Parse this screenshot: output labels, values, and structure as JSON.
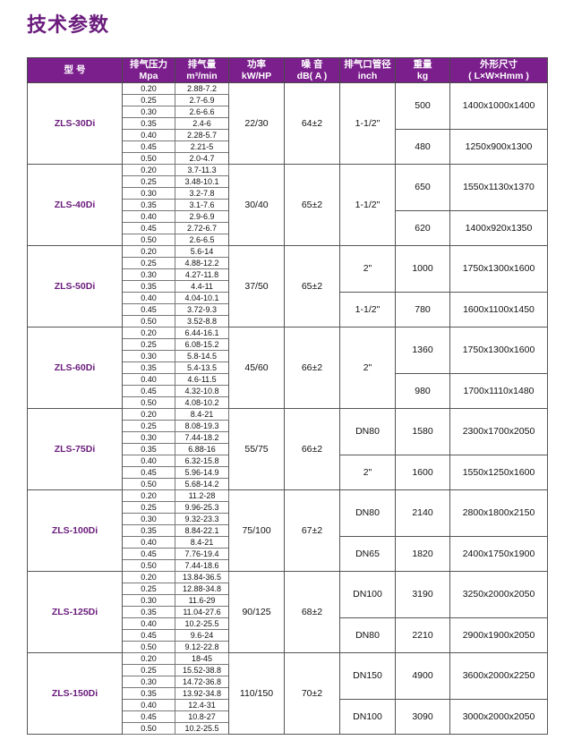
{
  "title": "技术参数",
  "headers": [
    {
      "l1": "型  号",
      "l2": ""
    },
    {
      "l1": "排气压力",
      "l2": "Mpa"
    },
    {
      "l1": "排气量",
      "l2": "m³/min"
    },
    {
      "l1": "功率",
      "l2": "kW/HP"
    },
    {
      "l1": "噪 音",
      "l2": "dB( A )"
    },
    {
      "l1": "排气口管径",
      "l2": "inch"
    },
    {
      "l1": "重量",
      "l2": "kg"
    },
    {
      "l1": "外形尺寸",
      "l2": "( L×W×Hmm )"
    }
  ],
  "accent": "#7b1f8c",
  "models": [
    {
      "name": "ZLS-30Di",
      "power": "22/30",
      "noise": "64±2",
      "pipes": [
        "1-1/2\""
      ],
      "weights": [
        "500",
        "480"
      ],
      "dims": [
        "1400x1000x1400",
        "1250x900x1300"
      ],
      "rows": [
        [
          "0.20",
          "2.88-7.2"
        ],
        [
          "0.25",
          "2.7-6.9"
        ],
        [
          "0.30",
          "2.6-6.6"
        ],
        [
          "0.35",
          "2.4-6"
        ],
        [
          "0.40",
          "2.28-5.7"
        ],
        [
          "0.45",
          "2.21-5"
        ],
        [
          "0.50",
          "2.0-4.7"
        ]
      ]
    },
    {
      "name": "ZLS-40Di",
      "power": "30/40",
      "noise": "65±2",
      "pipes": [
        "1-1/2\""
      ],
      "weights": [
        "650",
        "620"
      ],
      "dims": [
        "1550x1130x1370",
        "1400x920x1350"
      ],
      "rows": [
        [
          "0.20",
          "3.7-11.3"
        ],
        [
          "0.25",
          "3.48-10.1"
        ],
        [
          "0.30",
          "3.2-7.8"
        ],
        [
          "0.35",
          "3.1-7.6"
        ],
        [
          "0.40",
          "2.9-6.9"
        ],
        [
          "0.45",
          "2.72-6.7"
        ],
        [
          "0.50",
          "2.6-6.5"
        ]
      ]
    },
    {
      "name": "ZLS-50Di",
      "power": "37/50",
      "noise": "65±2",
      "pipes": [
        "2\"",
        "1-1/2\""
      ],
      "weights": [
        "1000",
        "780"
      ],
      "dims": [
        "1750x1300x1600",
        "1600x1100x1450"
      ],
      "rows": [
        [
          "0.20",
          "5.6-14"
        ],
        [
          "0.25",
          "4.88-12.2"
        ],
        [
          "0.30",
          "4.27-11.8"
        ],
        [
          "0.35",
          "4.4-11"
        ],
        [
          "0.40",
          "4.04-10.1"
        ],
        [
          "0.45",
          "3.72-9.3"
        ],
        [
          "0.50",
          "3.52-8.8"
        ]
      ]
    },
    {
      "name": "ZLS-60Di",
      "power": "45/60",
      "noise": "66±2",
      "pipes": [
        "2\""
      ],
      "weights": [
        "1360",
        "980"
      ],
      "dims": [
        "1750x1300x1600",
        "1700x1110x1480"
      ],
      "rows": [
        [
          "0.20",
          "6.44-16.1"
        ],
        [
          "0.25",
          "6.08-15.2"
        ],
        [
          "0.30",
          "5.8-14.5"
        ],
        [
          "0.35",
          "5.4-13.5"
        ],
        [
          "0.40",
          "4.6-11.5"
        ],
        [
          "0.45",
          "4.32-10.8"
        ],
        [
          "0.50",
          "4.08-10.2"
        ]
      ]
    },
    {
      "name": "ZLS-75Di",
      "power": "55/75",
      "noise": "66±2",
      "pipes": [
        "DN80",
        "2\""
      ],
      "weights": [
        "1580",
        "1600"
      ],
      "dims": [
        "2300x1700x2050",
        "1550x1250x1600"
      ],
      "rows": [
        [
          "0.20",
          "8.4-21"
        ],
        [
          "0.25",
          "8.08-19.3"
        ],
        [
          "0.30",
          "7.44-18.2"
        ],
        [
          "0.35",
          "6.88-16"
        ],
        [
          "0.40",
          "6.32-15.8"
        ],
        [
          "0.45",
          "5.96-14.9"
        ],
        [
          "0.50",
          "5.68-14.2"
        ]
      ]
    },
    {
      "name": "ZLS-100Di",
      "power": "75/100",
      "noise": "67±2",
      "pipes": [
        "DN80",
        "DN65"
      ],
      "weights": [
        "2140",
        "1820"
      ],
      "dims": [
        "2800x1800x2150",
        "2400x1750x1900"
      ],
      "rows": [
        [
          "0.20",
          "11.2-28"
        ],
        [
          "0.25",
          "9.96-25.3"
        ],
        [
          "0.30",
          "9.32-23.3"
        ],
        [
          "0.35",
          "8.84-22.1"
        ],
        [
          "0.40",
          "8.4-21"
        ],
        [
          "0.45",
          "7.76-19.4"
        ],
        [
          "0.50",
          "7.44-18.6"
        ]
      ]
    },
    {
      "name": "ZLS-125Di",
      "power": "90/125",
      "noise": "68±2",
      "pipes": [
        "DN100",
        "DN80"
      ],
      "weights": [
        "3190",
        "2210"
      ],
      "dims": [
        "3250x2000x2050",
        "2900x1900x2050"
      ],
      "rows": [
        [
          "0.20",
          "13.84-36.5"
        ],
        [
          "0.25",
          "12.88-34.8"
        ],
        [
          "0.30",
          "11.6-29"
        ],
        [
          "0.35",
          "11.04-27.6"
        ],
        [
          "0.40",
          "10.2-25.5"
        ],
        [
          "0.45",
          "9.6-24"
        ],
        [
          "0.50",
          "9.12-22.8"
        ]
      ]
    },
    {
      "name": "ZLS-150Di",
      "power": "110/150",
      "noise": "70±2",
      "pipes": [
        "DN150",
        "DN100"
      ],
      "weights": [
        "4900",
        "3090"
      ],
      "dims": [
        "3600x2000x2250",
        "3000x2000x2050"
      ],
      "rows": [
        [
          "0.20",
          "18-45"
        ],
        [
          "0.25",
          "15.52-38.8"
        ],
        [
          "0.30",
          "14.72-36.8"
        ],
        [
          "0.35",
          "13.92-34.8"
        ],
        [
          "0.40",
          "12.4-31"
        ],
        [
          "0.45",
          "10.8-27"
        ],
        [
          "0.50",
          "10.2-25.5"
        ]
      ]
    }
  ]
}
